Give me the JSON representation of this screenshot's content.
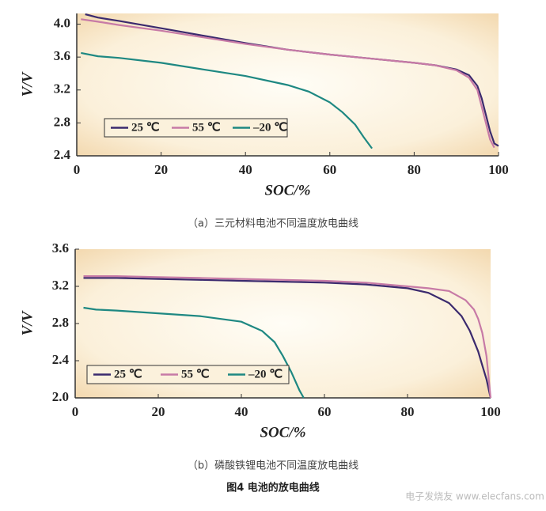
{
  "chart_data": [
    {
      "type": "line",
      "caption": "（a）三元材料电池不同温度放电曲线",
      "xlabel": "SOC/%",
      "ylabel": "V/V",
      "xlim": [
        0,
        100
      ],
      "xticks": [
        0,
        20,
        40,
        60,
        80,
        100
      ],
      "ylim": [
        2.4,
        4.13
      ],
      "yticks": [
        2.4,
        2.8,
        3.2,
        3.6,
        {
          "value": 4,
          "label": "4.0"
        }
      ],
      "legend": "lower left",
      "series": [
        {
          "name": "25 ℃",
          "color": "#3b2a6e",
          "x": [
            2,
            5,
            10,
            20,
            30,
            40,
            50,
            60,
            70,
            80,
            85,
            90,
            93,
            95,
            96,
            97,
            98,
            99,
            100
          ],
          "values": [
            4.12,
            4.08,
            4.04,
            3.95,
            3.86,
            3.77,
            3.69,
            3.63,
            3.58,
            3.53,
            3.5,
            3.45,
            3.38,
            3.25,
            3.1,
            2.9,
            2.7,
            2.55,
            2.52
          ]
        },
        {
          "name": "55 ℃",
          "color": "#c77aa6",
          "x": [
            1,
            5,
            10,
            20,
            30,
            40,
            50,
            60,
            70,
            80,
            85,
            90,
            93,
            95,
            96,
            97,
            98,
            99
          ],
          "values": [
            4.06,
            4.03,
            3.99,
            3.92,
            3.84,
            3.76,
            3.69,
            3.63,
            3.58,
            3.53,
            3.5,
            3.44,
            3.35,
            3.2,
            3.0,
            2.8,
            2.6,
            2.5
          ]
        },
        {
          "name": "–20 ℃",
          "color": "#1e8882",
          "x": [
            1,
            5,
            10,
            20,
            30,
            40,
            50,
            55,
            60,
            63,
            66,
            68,
            70
          ],
          "values": [
            3.65,
            3.61,
            3.59,
            3.53,
            3.45,
            3.37,
            3.26,
            3.18,
            3.05,
            2.93,
            2.78,
            2.63,
            2.49
          ]
        }
      ]
    },
    {
      "type": "line",
      "caption": "（b）磷酸铁锂电池不同温度放电曲线",
      "xlabel": "SOC/%",
      "ylabel": "V/V",
      "xlim": [
        0,
        100
      ],
      "xticks": [
        0,
        20,
        40,
        60,
        80,
        100
      ],
      "ylim": [
        2,
        3.6
      ],
      "yticks": [
        {
          "value": 2,
          "label": "2.0"
        },
        2.4,
        2.8,
        3.2,
        3.6
      ],
      "legend": "lower left",
      "series": [
        {
          "name": "25 ℃",
          "color": "#3b2a6e",
          "x": [
            2,
            10,
            20,
            30,
            40,
            50,
            60,
            70,
            80,
            85,
            90,
            93,
            95,
            97,
            98,
            99,
            100
          ],
          "values": [
            3.29,
            3.29,
            3.28,
            3.27,
            3.26,
            3.25,
            3.24,
            3.22,
            3.18,
            3.13,
            3.02,
            2.88,
            2.72,
            2.5,
            2.35,
            2.2,
            2.0
          ]
        },
        {
          "name": "55 ℃",
          "color": "#c77aa6",
          "x": [
            2,
            10,
            20,
            30,
            40,
            50,
            60,
            70,
            80,
            85,
            90,
            94,
            96,
            97,
            98,
            99,
            100
          ],
          "values": [
            3.31,
            3.31,
            3.3,
            3.29,
            3.28,
            3.27,
            3.26,
            3.24,
            3.2,
            3.18,
            3.15,
            3.05,
            2.95,
            2.85,
            2.7,
            2.45,
            2.0
          ]
        },
        {
          "name": "–20 ℃",
          "color": "#1e8882",
          "x": [
            2,
            5,
            10,
            20,
            30,
            40,
            45,
            48,
            50,
            52,
            54,
            55
          ],
          "values": [
            2.97,
            2.95,
            2.94,
            2.91,
            2.88,
            2.82,
            2.72,
            2.6,
            2.45,
            2.28,
            2.08,
            2.0
          ]
        }
      ]
    }
  ],
  "figure_caption": "图4 电池的放电曲线",
  "watermark": "电子发烧友 www.elecfans.com"
}
